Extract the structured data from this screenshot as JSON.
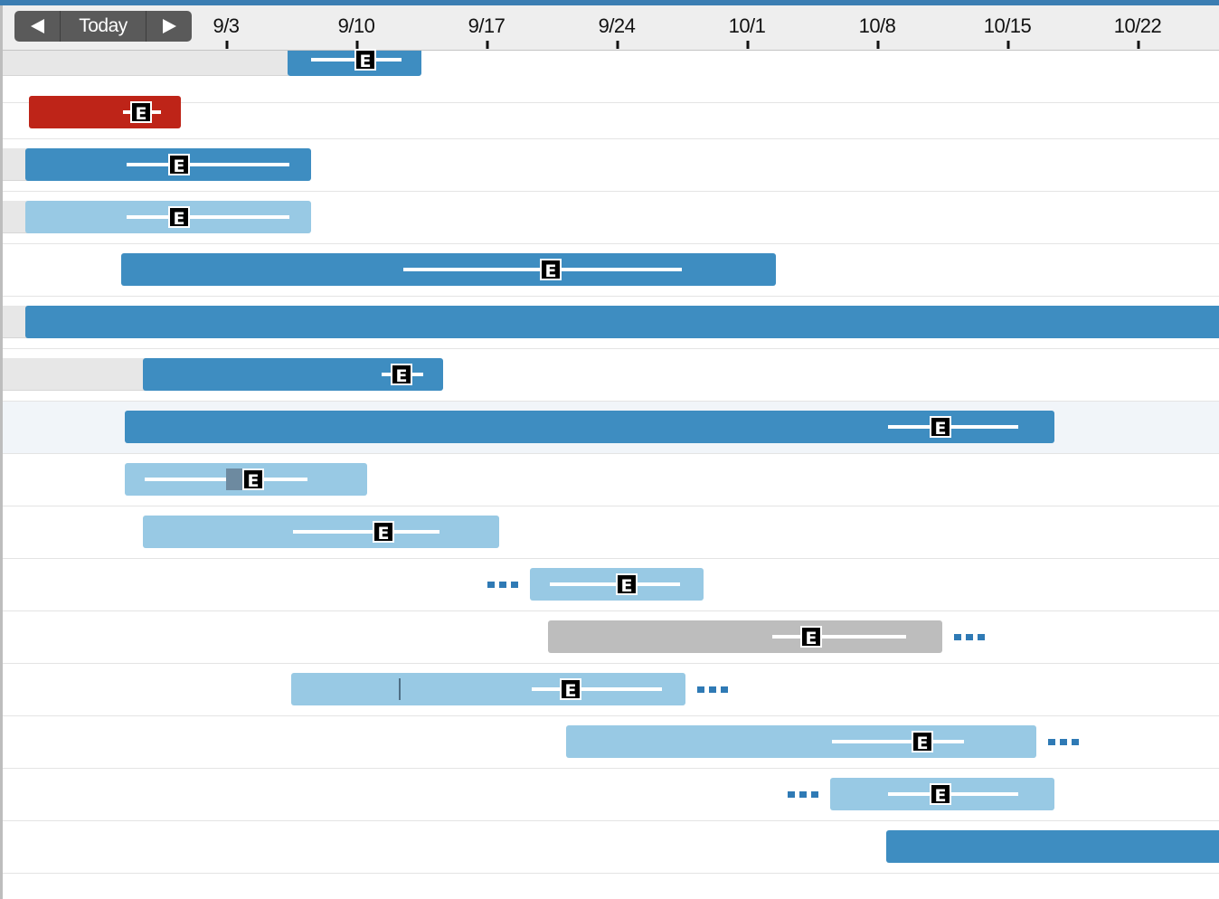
{
  "colors": {
    "top_stripe": "#3b7db2",
    "bar_blue": "#3e8dc1",
    "bar_light_blue": "#98c9e4",
    "bar_red": "#be2418",
    "bar_gray": "#bdbdbd",
    "marker_black": "#000000",
    "dots_blue": "#2f7ab5"
  },
  "toolbar": {
    "prev_icon": "left-triangle-icon",
    "today_label": "Today",
    "next_icon": "right-triangle-icon"
  },
  "timeline": {
    "dates": [
      "9/3",
      "9/10",
      "9/17",
      "9/24",
      "10/1",
      "10/8",
      "10/15",
      "10/22"
    ]
  },
  "rows": [
    {
      "color": "blue",
      "marker_label": "E"
    },
    {
      "color": "red",
      "marker_label": "E"
    },
    {
      "color": "blue",
      "marker_label": "E"
    },
    {
      "color": "light-blue",
      "marker_label": "E"
    },
    {
      "color": "blue",
      "marker_label": "E"
    },
    {
      "color": "blue",
      "marker_label": ""
    },
    {
      "color": "blue",
      "marker_label": "E"
    },
    {
      "color": "blue",
      "marker_label": "E",
      "highlighted": true
    },
    {
      "color": "light-blue",
      "marker_label": "E"
    },
    {
      "color": "light-blue",
      "marker_label": "E"
    },
    {
      "color": "light-blue",
      "marker_label": "E",
      "dependency_dots": "before"
    },
    {
      "color": "gray",
      "marker_label": "E",
      "dependency_dots": "after"
    },
    {
      "color": "light-blue",
      "marker_label": "E",
      "dependency_dots": "after"
    },
    {
      "color": "light-blue",
      "marker_label": "E",
      "dependency_dots": "after"
    },
    {
      "color": "light-blue",
      "marker_label": "E",
      "dependency_dots": "before"
    },
    {
      "color": "blue",
      "marker_label": ""
    }
  ]
}
